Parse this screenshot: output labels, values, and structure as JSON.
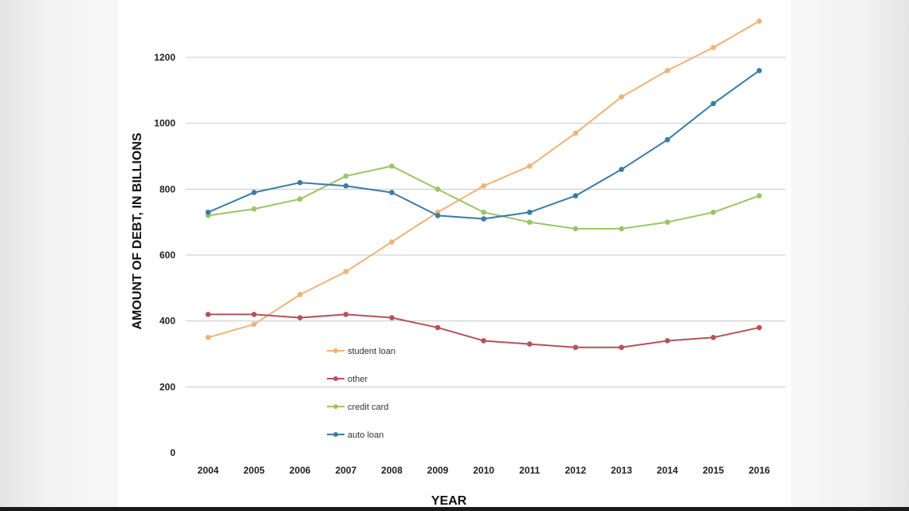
{
  "chart_data": {
    "type": "line",
    "title": "",
    "xlabel": "YEAR",
    "ylabel": "AMOUNT OF DEBT, IN BILLIONS",
    "x": [
      "2004",
      "2005",
      "2006",
      "2007",
      "2008",
      "2009",
      "2010",
      "2011",
      "2012",
      "2013",
      "2014",
      "2015",
      "2016"
    ],
    "ylim": [
      0,
      1200
    ],
    "yticks": [
      0,
      200,
      400,
      600,
      800,
      1000,
      1200
    ],
    "grid": "horizontal",
    "legend_placement": "center-left",
    "series": [
      {
        "name": "student loan",
        "color": "#f0b27a",
        "values": [
          350,
          390,
          480,
          550,
          640,
          730,
          810,
          870,
          970,
          1080,
          1160,
          1230,
          1310
        ]
      },
      {
        "name": "other",
        "color": "#b5525c",
        "values": [
          420,
          420,
          410,
          420,
          410,
          380,
          340,
          330,
          320,
          320,
          340,
          350,
          380
        ]
      },
      {
        "name": "credit card",
        "color": "#9bc564",
        "values": [
          720,
          740,
          770,
          840,
          870,
          800,
          730,
          700,
          680,
          680,
          700,
          730,
          780
        ]
      },
      {
        "name": "auto loan",
        "color": "#3a7ca5",
        "values": [
          730,
          790,
          820,
          810,
          790,
          720,
          710,
          730,
          780,
          860,
          950,
          1060,
          1160
        ]
      }
    ]
  }
}
